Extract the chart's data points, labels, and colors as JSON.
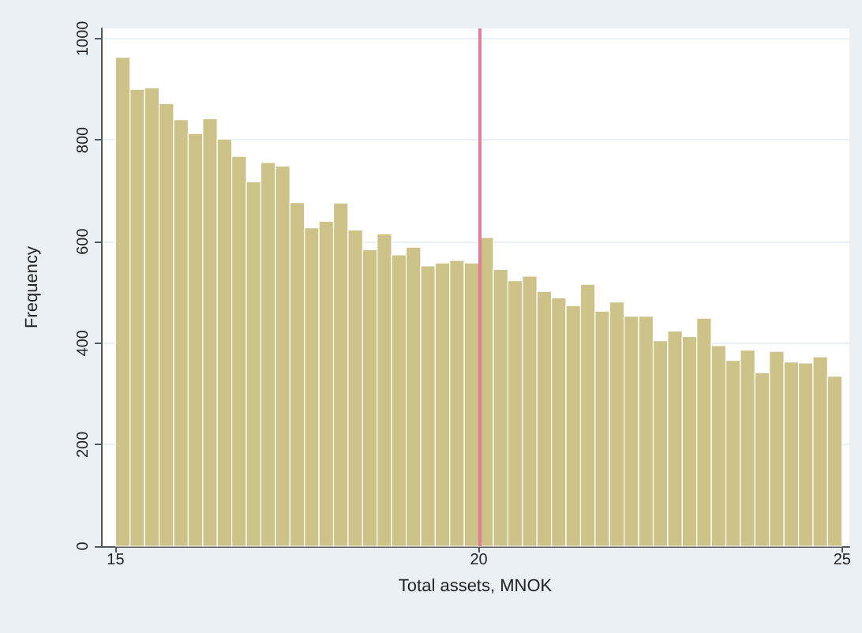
{
  "chart_data": {
    "type": "histogram",
    "xlabel": "Total assets, MNOK",
    "ylabel": "Frequency",
    "color": "#cdc388",
    "bins": [
      15,
      15.2,
      15.4,
      15.6,
      15.8,
      16,
      16.2,
      16.4,
      16.6,
      16.8,
      17,
      17.2,
      17.4,
      17.6,
      17.8,
      18,
      18.2,
      18.4,
      18.6,
      18.8,
      19,
      19.2,
      19.4,
      19.6,
      19.8,
      20,
      20.2,
      20.4,
      20.6,
      20.8,
      21,
      21.2,
      21.4,
      21.6,
      21.8,
      22,
      22.2,
      22.4,
      22.6,
      22.8,
      23,
      23.2,
      23.4,
      23.6,
      23.8,
      24,
      24.2,
      24.4,
      24.6,
      24.8,
      25
    ],
    "values": [
      963,
      900,
      903,
      872,
      840,
      813,
      842,
      802,
      768,
      718,
      756,
      749,
      677,
      627,
      640,
      676,
      623,
      584,
      615,
      574,
      589,
      552,
      558,
      563,
      558,
      608,
      545,
      523,
      532,
      502,
      489,
      474,
      516,
      463,
      481,
      453,
      453,
      405,
      424,
      413,
      449,
      395,
      366,
      386,
      342,
      384,
      363,
      361,
      373,
      335
    ],
    "xlim": [
      14.8,
      25.1
    ],
    "xticks": [
      15,
      20,
      25
    ],
    "ylim": [
      0,
      1020
    ],
    "yticks": [
      0,
      200,
      400,
      600,
      800,
      1000
    ],
    "grid": "y",
    "ref_lines": [
      {
        "axis": "x",
        "value": 20,
        "color": "#e07f98"
      }
    ]
  }
}
